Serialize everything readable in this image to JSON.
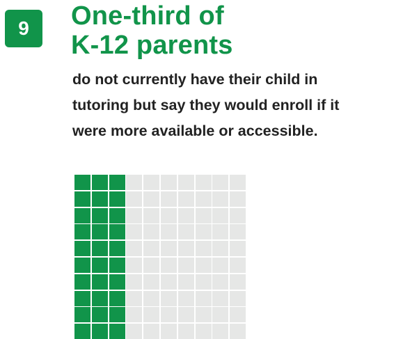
{
  "badge": {
    "number": "9"
  },
  "headline": {
    "line1": "One-third of",
    "line2": "K-12 parents"
  },
  "body": {
    "line1": "do not currently have their child in",
    "line2": "tutoring but say they would enroll if it",
    "line3": "were more available or accessible."
  },
  "waffle": {
    "rows": 10,
    "cols": 10,
    "filled_columns": 3,
    "filled_fraction": 0.3
  },
  "colors": {
    "accent": "#11944a",
    "empty_cell": "#e6e7e6",
    "text": "#222222"
  }
}
